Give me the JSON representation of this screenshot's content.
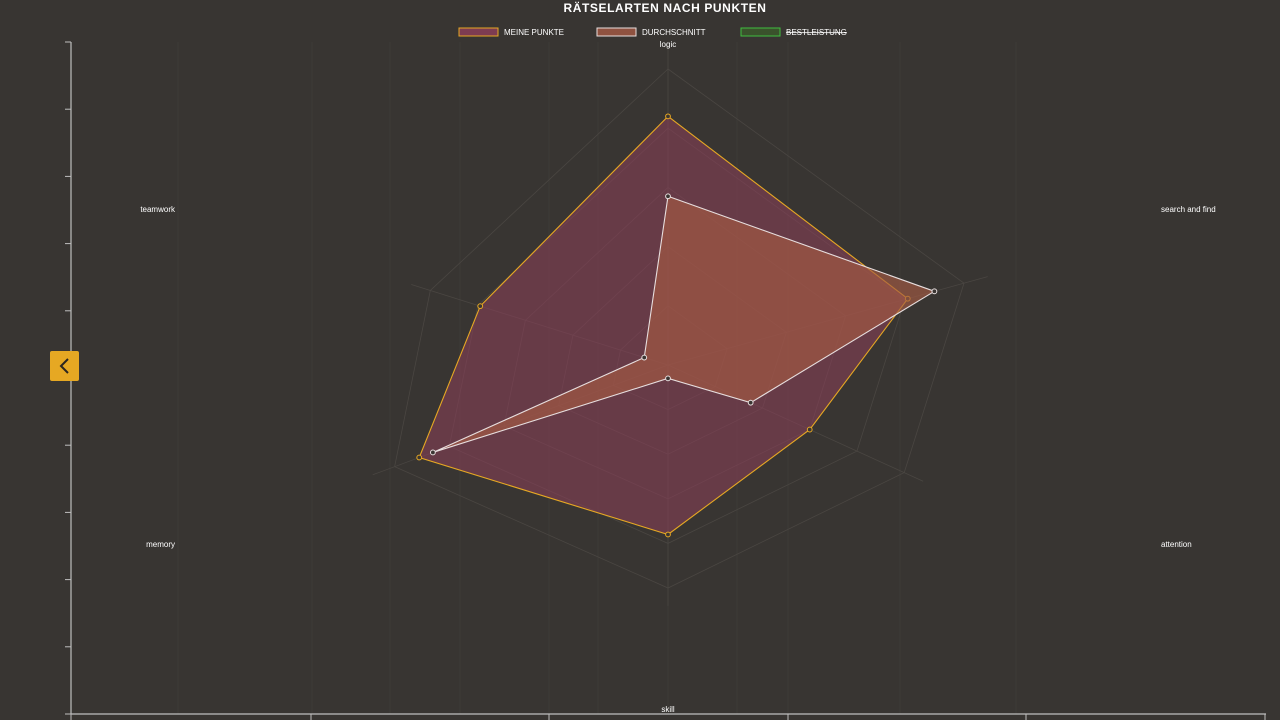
{
  "chart_data": {
    "type": "radar",
    "title": "RÄTSELARTEN NACH PUNKTEN",
    "axes": [
      "logic",
      "search and find",
      "attention",
      "skill",
      "memory",
      "teamwork"
    ],
    "series": [
      {
        "name": "MEINE PUNKTE",
        "values": [
          84,
          81,
          60,
          76,
          91,
          79
        ],
        "stroke": "#e6a823",
        "fill": "#8e3f5a",
        "fill_opacity": 0.55
      },
      {
        "name": "DURCHSCHNITT",
        "values": [
          57,
          90,
          35,
          6,
          86,
          10
        ],
        "stroke": "#e7dede",
        "fill": "#a55a44",
        "fill_opacity": 0.65
      },
      {
        "name": "BESTLEISTUNG",
        "values": [],
        "stroke": "#3fbf3f",
        "fill": "#3b5a2a",
        "hidden": true
      }
    ],
    "range": [
      0,
      100
    ],
    "legend_position": "top-center"
  },
  "colors": {
    "background": "#383532",
    "grid": "#4a4642",
    "axis": "#bfbfbf",
    "accent": "#e6a823"
  },
  "nav": {
    "back_icon": "chevron-left-icon"
  }
}
